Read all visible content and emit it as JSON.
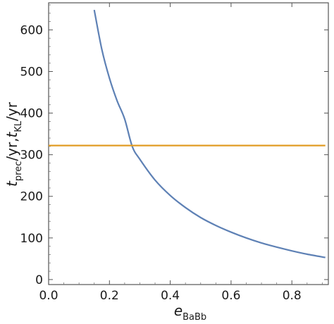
{
  "chart_data": {
    "type": "line",
    "xlabel": {
      "main": "e",
      "sub": "BaBb"
    },
    "ylabel": {
      "t1": "t",
      "sub1": "prec",
      "mid": "/yr,",
      "t2": "t",
      "sub2": "KL",
      "end": "/yr"
    },
    "xlim": [
      0.0,
      0.92
    ],
    "ylim": [
      -12,
      665
    ],
    "xticks": [
      0.0,
      0.2,
      0.4,
      0.6,
      0.8
    ],
    "xtick_labels": [
      "0.0",
      "0.2",
      "0.4",
      "0.6",
      "0.8"
    ],
    "yticks": [
      0,
      100,
      200,
      300,
      400,
      500,
      600
    ],
    "ytick_labels": [
      "0",
      "100",
      "200",
      "300",
      "400",
      "500",
      "600"
    ],
    "grid": false,
    "series": [
      {
        "color": "#5E81B5",
        "x": [
          0.15,
          0.175,
          0.2,
          0.225,
          0.25,
          0.275,
          0.3,
          0.35,
          0.4,
          0.45,
          0.5,
          0.55,
          0.6,
          0.65,
          0.7,
          0.75,
          0.8,
          0.85,
          0.91
        ],
        "y": [
          648,
          553,
          484,
          430,
          386,
          320,
          289,
          239,
          202,
          173,
          149,
          130,
          114,
          100,
          88,
          78,
          69,
          61,
          53
        ]
      },
      {
        "color": "#E19C24",
        "x": [
          0.0,
          0.91
        ],
        "y": [
          322,
          322
        ]
      }
    ]
  }
}
